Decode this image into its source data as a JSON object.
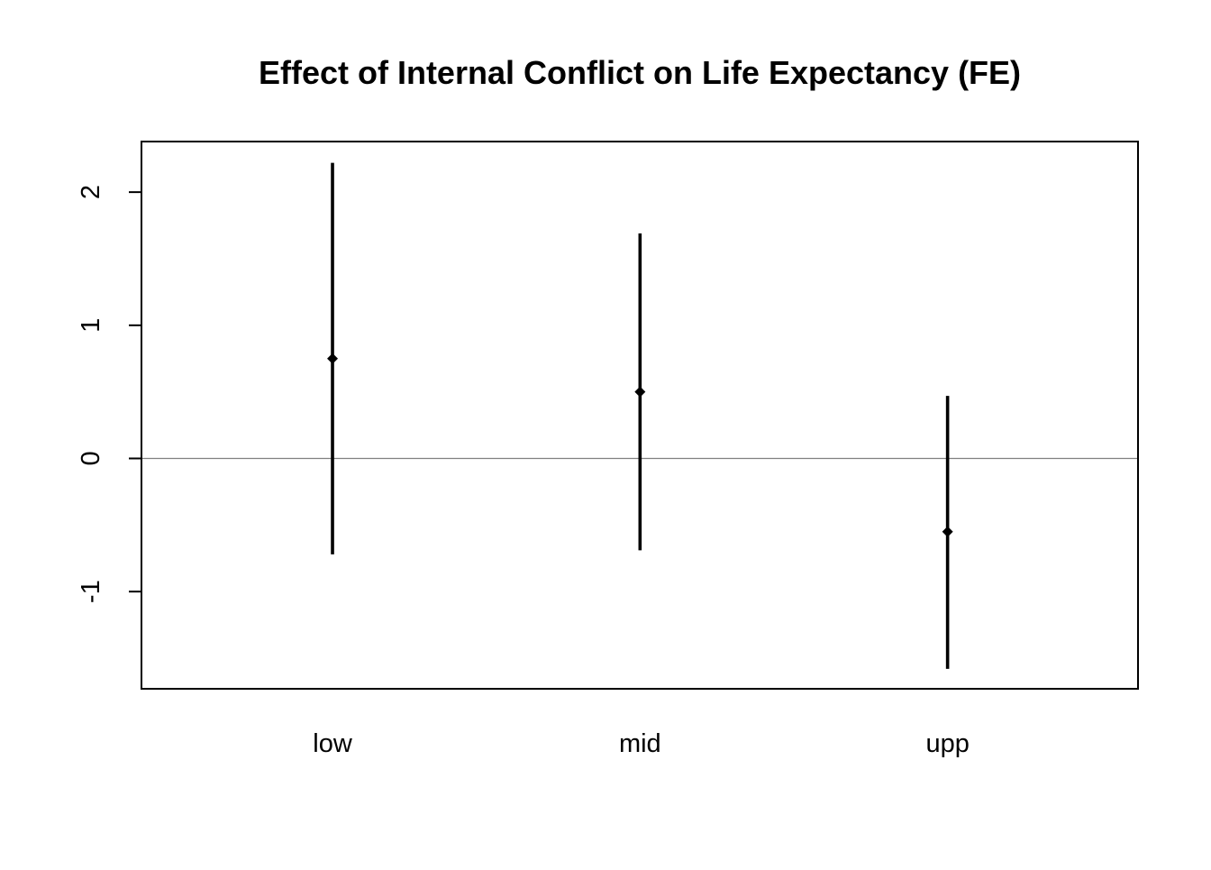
{
  "chart_data": {
    "type": "errorbar",
    "title": "Effect of Internal Conflict on Life Expectancy (FE)",
    "xlabel": "",
    "ylabel": "",
    "categories": [
      "low",
      "mid",
      "upp"
    ],
    "points": [
      {
        "category": "low",
        "estimate": 0.75,
        "lower": -0.72,
        "upper": 2.22
      },
      {
        "category": "mid",
        "estimate": 0.5,
        "lower": -0.69,
        "upper": 1.69
      },
      {
        "category": "upp",
        "estimate": -0.55,
        "lower": -1.58,
        "upper": 0.47
      }
    ],
    "yticks": [
      -1,
      0,
      1,
      2
    ],
    "ylim": [
      -1.73,
      2.38
    ],
    "reference_line": 0,
    "grid": false,
    "colors": {
      "bars": "#000000",
      "reference_line": "#808080",
      "frame": "#000000"
    }
  }
}
